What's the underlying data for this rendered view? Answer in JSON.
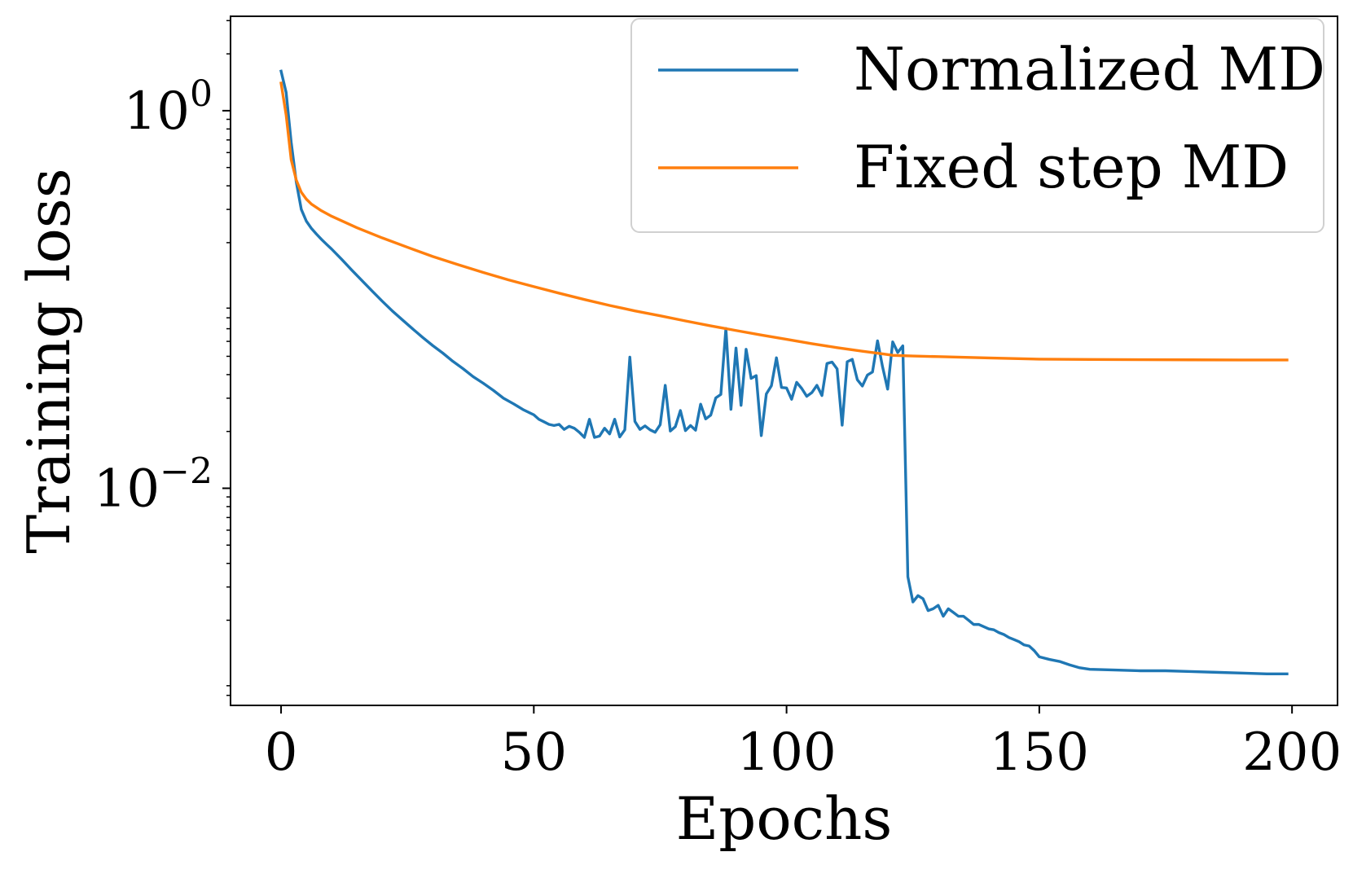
{
  "chart_data": {
    "type": "line",
    "title": "",
    "xlabel": "Epochs",
    "ylabel": "Training loss",
    "xlim": [
      -10,
      209
    ],
    "ylim_log10": [
      -3.15,
      0.5
    ],
    "y_scale": "log",
    "grid": false,
    "legend_position": "top-right",
    "x_ticks": [
      {
        "value": 0,
        "label": "0"
      },
      {
        "value": 50,
        "label": "50"
      },
      {
        "value": 100,
        "label": "100"
      },
      {
        "value": 150,
        "label": "150"
      },
      {
        "value": 200,
        "label": "200"
      }
    ],
    "y_ticks": [
      {
        "value_log10": 0,
        "base": "10",
        "exponent": "0"
      },
      {
        "value_log10": -2,
        "base": "10",
        "exponent": "−2"
      }
    ],
    "series": [
      {
        "name": "Normalized MD",
        "color": "#1f77b4",
        "x": [
          0,
          1,
          2,
          3,
          4,
          5,
          6,
          7,
          8,
          9,
          10,
          12,
          14,
          16,
          18,
          20,
          22,
          24,
          26,
          28,
          30,
          32,
          34,
          36,
          38,
          40,
          42,
          44,
          46,
          48,
          50,
          51,
          52,
          53,
          54,
          55,
          56,
          57,
          58,
          59,
          60,
          61,
          62,
          63,
          64,
          65,
          66,
          67,
          68,
          69,
          70,
          71,
          72,
          73,
          74,
          75,
          76,
          77,
          78,
          79,
          80,
          81,
          82,
          83,
          84,
          85,
          86,
          87,
          88,
          89,
          90,
          91,
          92,
          93,
          94,
          95,
          96,
          97,
          98,
          99,
          100,
          101,
          102,
          103,
          104,
          105,
          106,
          107,
          108,
          109,
          110,
          111,
          112,
          113,
          114,
          115,
          116,
          117,
          118,
          119,
          120,
          121,
          122,
          123,
          124,
          125,
          126,
          127,
          128,
          129,
          130,
          131,
          132,
          133,
          134,
          135,
          136,
          137,
          138,
          139,
          140,
          141,
          142,
          143,
          144,
          145,
          146,
          147,
          148,
          149,
          150,
          152,
          154,
          156,
          158,
          160,
          165,
          170,
          175,
          180,
          185,
          190,
          195,
          199
        ],
        "y": [
          1.62,
          1.25,
          0.68,
          0.42,
          0.3,
          0.26,
          0.238,
          0.222,
          0.208,
          0.196,
          0.185,
          0.163,
          0.143,
          0.126,
          0.111,
          0.098,
          0.087,
          0.078,
          0.07,
          0.063,
          0.057,
          0.052,
          0.047,
          0.043,
          0.039,
          0.036,
          0.033,
          0.03,
          0.028,
          0.026,
          0.0245,
          0.0232,
          0.0225,
          0.0218,
          0.0215,
          0.0218,
          0.0205,
          0.0213,
          0.0208,
          0.0198,
          0.0186,
          0.0232,
          0.0186,
          0.0189,
          0.0208,
          0.0194,
          0.0232,
          0.0187,
          0.0204,
          0.0495,
          0.0226,
          0.0205,
          0.0214,
          0.0204,
          0.0198,
          0.0217,
          0.0351,
          0.0201,
          0.0212,
          0.0258,
          0.0202,
          0.0215,
          0.0203,
          0.0279,
          0.0233,
          0.0244,
          0.0301,
          0.0314,
          0.0702,
          0.0262,
          0.0553,
          0.0275,
          0.0545,
          0.0382,
          0.0395,
          0.019,
          0.0316,
          0.0349,
          0.0491,
          0.0342,
          0.034,
          0.0296,
          0.0364,
          0.0338,
          0.0307,
          0.0321,
          0.0351,
          0.031,
          0.0458,
          0.0466,
          0.0429,
          0.0216,
          0.0468,
          0.0482,
          0.0376,
          0.0348,
          0.0398,
          0.0413,
          0.0604,
          0.0439,
          0.0335,
          0.0596,
          0.0524,
          0.0568,
          0.0034,
          0.0025,
          0.0027,
          0.0026,
          0.00225,
          0.0023,
          0.0024,
          0.0021,
          0.0023,
          0.0022,
          0.0021,
          0.0021,
          0.002,
          0.0019,
          0.0019,
          0.00185,
          0.0018,
          0.00178,
          0.00172,
          0.00168,
          0.00162,
          0.00158,
          0.00154,
          0.00148,
          0.00146,
          0.00138,
          0.00128,
          0.00124,
          0.00121,
          0.00116,
          0.00112,
          0.0011,
          0.00109,
          0.00108,
          0.00108,
          0.00107,
          0.00106,
          0.00105,
          0.00104,
          0.00104
        ]
      },
      {
        "name": "Fixed step MD",
        "color": "#ff7f0e",
        "x": [
          0,
          1,
          2,
          3,
          4,
          5,
          6,
          8,
          10,
          15,
          20,
          25,
          30,
          35,
          40,
          45,
          50,
          55,
          60,
          65,
          70,
          75,
          80,
          85,
          90,
          95,
          100,
          105,
          110,
          115,
          119,
          121,
          125,
          130,
          140,
          150,
          160,
          170,
          180,
          190,
          199
        ],
        "y": [
          1.4,
          0.95,
          0.55,
          0.43,
          0.37,
          0.34,
          0.32,
          0.295,
          0.276,
          0.24,
          0.212,
          0.189,
          0.169,
          0.153,
          0.139,
          0.127,
          0.117,
          0.108,
          0.1,
          0.093,
          0.087,
          0.082,
          0.077,
          0.0725,
          0.0685,
          0.0648,
          0.0615,
          0.0583,
          0.0556,
          0.0532,
          0.0515,
          0.0506,
          0.0502,
          0.0498,
          0.049,
          0.0483,
          0.0481,
          0.048,
          0.0479,
          0.0478,
          0.0478
        ]
      }
    ]
  }
}
